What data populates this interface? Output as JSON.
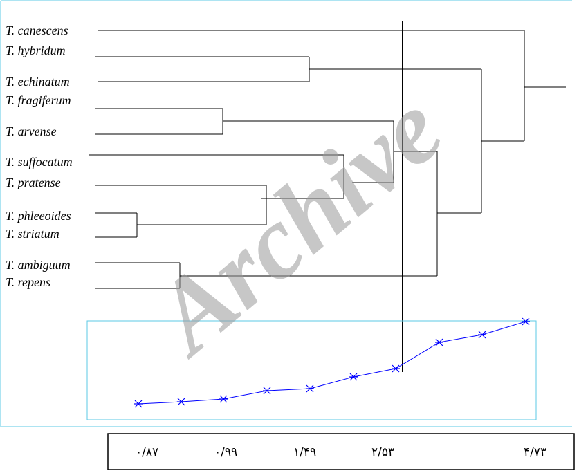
{
  "watermark": "Archive",
  "taxa": [
    "T. canescens",
    "T. hybridum",
    "T. echinatum",
    "T. fragiferum",
    "T. arvense",
    "T. suffocatum",
    "T. pratense",
    "T. phleeoides",
    "T. striatum",
    "T. ambiguum",
    "T. repens"
  ],
  "axis_ticks": [
    "۰/۸۷",
    "۰/۹۹",
    "۱/۴۹",
    "۲/۵۳",
    "۴/۷۳"
  ],
  "colors": {
    "frame": "#5bc8e6",
    "line": "#0000ff",
    "marker": "#0000ff",
    "tree": "#000000"
  }
}
